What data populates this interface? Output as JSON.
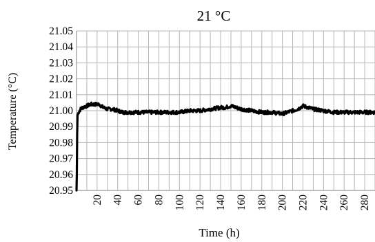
{
  "chart_data": {
    "type": "line",
    "title": "21 °C",
    "xlabel": "Time (h)",
    "ylabel": "Temperature (°C)",
    "ylim": [
      20.95,
      21.05
    ],
    "yticks": [
      "21.05",
      "21.04",
      "21.03",
      "21.02",
      "21.01",
      "21.00",
      "20.99",
      "20.98",
      "20.97",
      "20.96",
      "20.95"
    ],
    "xlim": [
      0,
      290
    ],
    "xticks": [
      "20",
      "40",
      "60",
      "80",
      "100",
      "120",
      "140",
      "160",
      "180",
      "200",
      "220",
      "240",
      "260",
      "280"
    ],
    "grid": true,
    "legend": "none",
    "series": [
      {
        "color": "#000000",
        "x": [
          0,
          0.3,
          0.6,
          1,
          2,
          4,
          6,
          10,
          14,
          18,
          22,
          26,
          30,
          35,
          40,
          45,
          50,
          60,
          70,
          80,
          90,
          100,
          110,
          120,
          130,
          140,
          145,
          150,
          155,
          160,
          170,
          180,
          190,
          200,
          210,
          215,
          220,
          225,
          230,
          240,
          250,
          260,
          270,
          280,
          290
        ],
        "y": [
          20.95,
          20.96,
          20.985,
          20.997,
          20.999,
          21.001,
          21.002,
          21.003,
          21.004,
          21.004,
          21.004,
          21.002,
          21.001,
          21.001,
          21.0,
          20.999,
          20.999,
          20.999,
          20.999,
          20.999,
          20.999,
          20.999,
          21.0,
          21.0,
          21.001,
          21.002,
          21.002,
          21.003,
          21.002,
          21.001,
          21.0,
          20.999,
          20.999,
          20.998,
          21.0,
          21.001,
          21.003,
          21.002,
          21.001,
          21.0,
          20.999,
          20.999,
          20.999,
          20.999,
          20.999
        ]
      }
    ]
  }
}
